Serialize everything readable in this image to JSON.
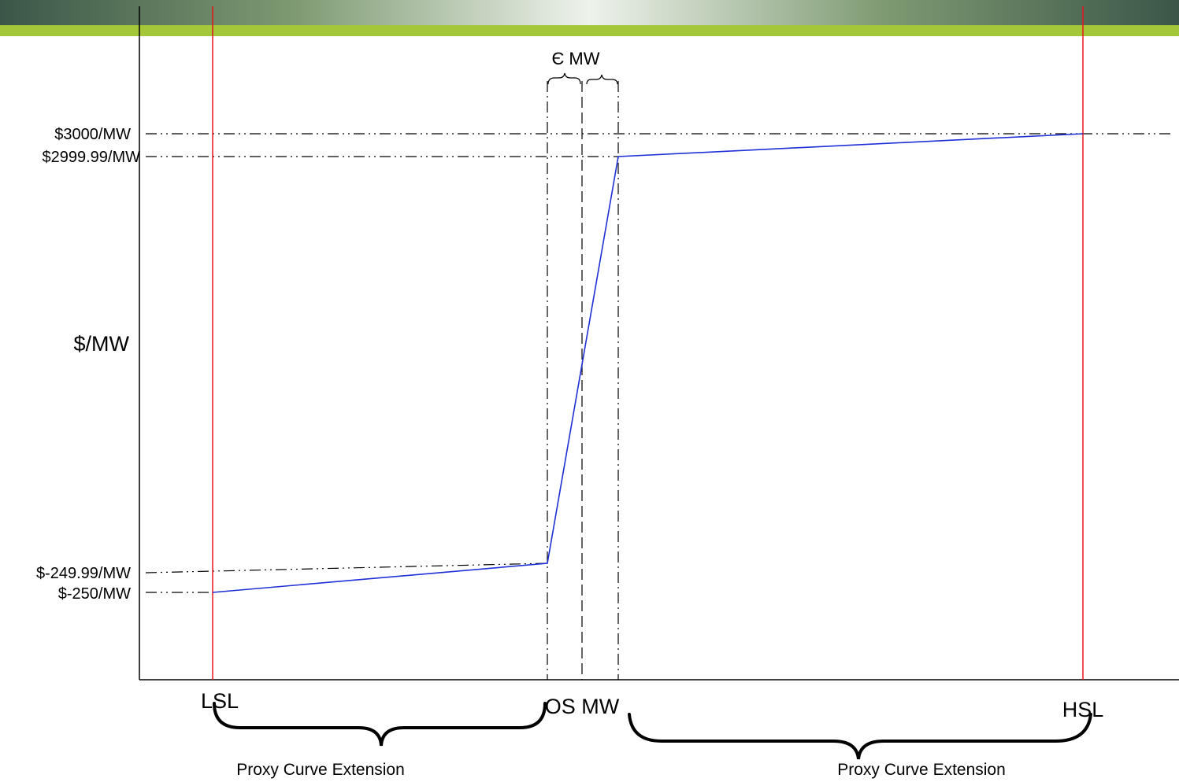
{
  "header": {
    "colors": {
      "dark": "#3d5a4c",
      "green": "#a4c639",
      "light": "#dfe8dc"
    }
  },
  "axes": {
    "y_label": "$/MW"
  },
  "price_labels": {
    "p3000": "$3000/MW",
    "p2999": "$2999.99/MW",
    "n24999": "$-249.99/MW",
    "n250": "$-250/MW"
  },
  "epsilon_label": "Є MW",
  "x_labels": {
    "lsl": "LSL",
    "os": "OS MW",
    "hsl": "HSL"
  },
  "extensions": {
    "left": "Proxy Curve Extension",
    "right": "Proxy Curve Extension"
  },
  "colors": {
    "curve": "#1f2fd6",
    "limit": "#e8141c",
    "axis": "#000000",
    "guide": "#000000"
  }
}
